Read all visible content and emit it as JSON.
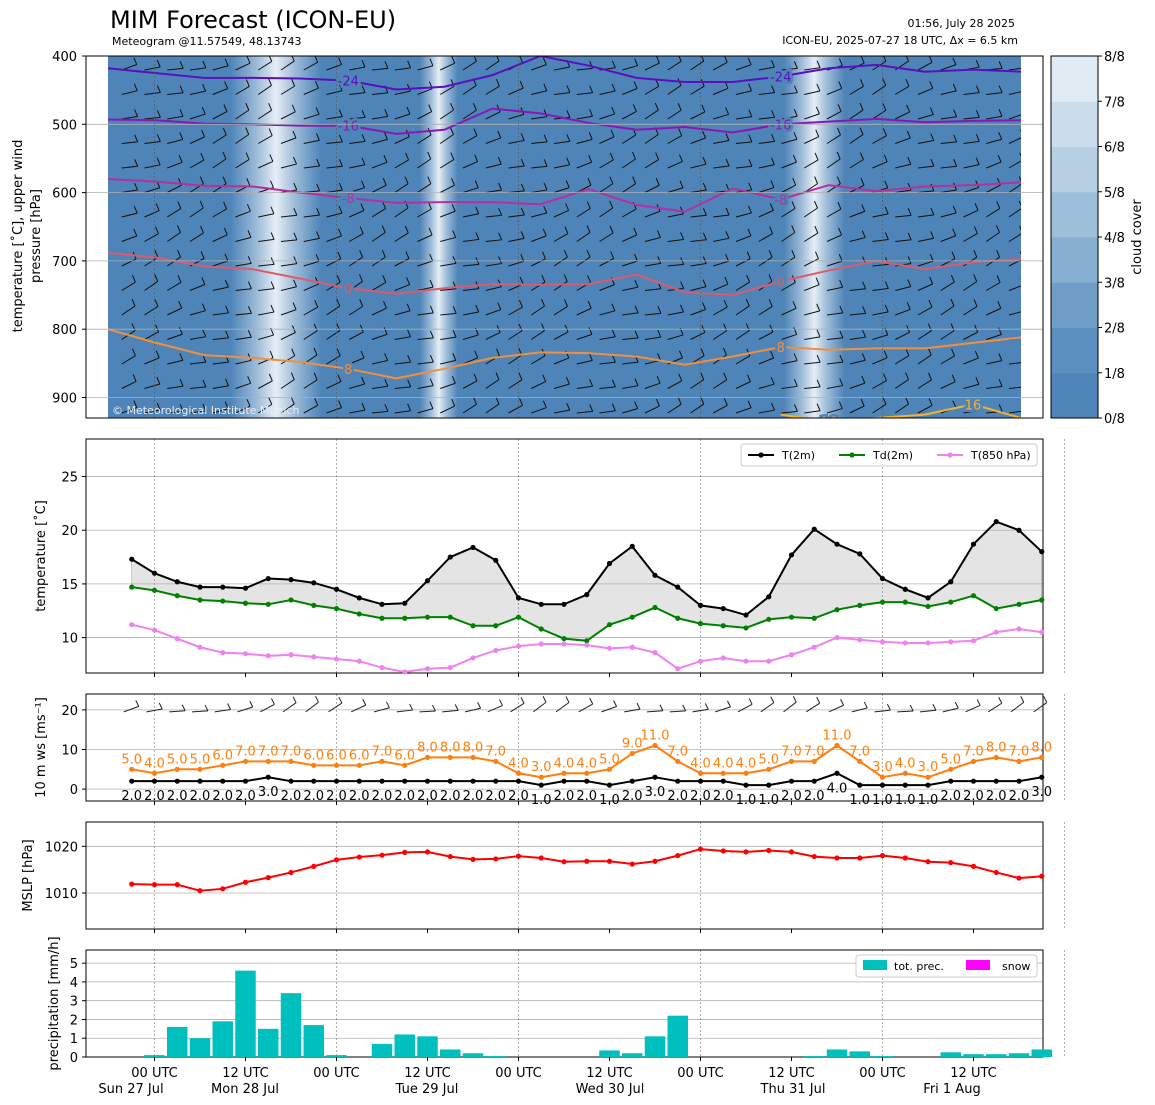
{
  "header": {
    "title": "MIM Forecast (ICON-EU)",
    "subtitle": "Meteogram @11.57549, 48.13743",
    "date": "01:56, July 28 2025",
    "model": "ICON-EU, 2025-07-27 18 UTC, Δx = 6.5 km"
  },
  "colors": {
    "t2m": "#000000",
    "td2m": "#008000",
    "t850": "#ee82ee",
    "wind10": "#ff7f0e",
    "mslp": "#ff0000",
    "precip": "#00bfbf",
    "snow": "#ff00ff"
  },
  "x_axis": {
    "tick_labels": [
      "00 UTC",
      "12 UTC",
      "00 UTC",
      "12 UTC",
      "00 UTC",
      "12 UTC",
      "00 UTC",
      "12 UTC",
      "00 UTC",
      "12 UTC"
    ],
    "day_labels": [
      "Sun 27 Jul",
      "Mon 28 Jul",
      "Tue 29 Jul",
      "Wed 30 Jul",
      "Thu 31 Jul",
      "Fri 1 Aug"
    ]
  },
  "chart_data": [
    {
      "type": "heatmap",
      "ylabel": "temperature [˚C], upper wind\npressure [hPa]",
      "yticks": [
        400,
        500,
        600,
        700,
        800,
        900
      ],
      "colorbar_label": "cloud cover",
      "colorbar_ticks": [
        "0/8",
        "1/8",
        "2/8",
        "3/8",
        "4/8",
        "5/8",
        "6/8",
        "7/8",
        "8/8"
      ],
      "watermark": "© Meteorological Institute Munich",
      "cloud_clear_bands_hours": [
        [
          10,
          22
        ],
        [
          35,
          40
        ],
        [
          83,
          91
        ],
        [
          132,
          137
        ],
        [
          161,
          163
        ],
        [
          171,
          175
        ],
        [
          181,
          183
        ],
        [
          190,
          193
        ]
      ],
      "isotherms": [
        {
          "label": "-24",
          "color": "#5b0fbf",
          "values": [
            418,
            425,
            432,
            432,
            433,
            436,
            449,
            445,
            428,
            400,
            414,
            432,
            438,
            438,
            430,
            418,
            413,
            423,
            420,
            423
          ]
        },
        {
          "label": "-16",
          "color": "#8a17b5",
          "values": [
            493,
            494,
            499,
            500,
            502,
            502,
            514,
            508,
            477,
            484,
            498,
            508,
            504,
            512,
            500,
            496,
            492,
            497,
            495,
            494
          ]
        },
        {
          "label": "-8",
          "color": "#b72f9e",
          "values": [
            580,
            584,
            590,
            591,
            600,
            608,
            615,
            614,
            614,
            617,
            595,
            618,
            628,
            594,
            610,
            589,
            598,
            591,
            589,
            585
          ]
        },
        {
          "label": "0",
          "color": "#dc5b6e",
          "values": [
            688,
            695,
            708,
            712,
            726,
            740,
            748,
            740,
            734,
            735,
            734,
            720,
            746,
            750,
            730,
            714,
            700,
            712,
            702,
            697
          ]
        },
        {
          "label": "8",
          "color": "#f0903e",
          "values": [
            800,
            820,
            838,
            842,
            848,
            858,
            872,
            858,
            842,
            834,
            835,
            840,
            852,
            840,
            826,
            830,
            828,
            828,
            820,
            812
          ]
        },
        {
          "label": "16",
          "color": "#f5b22f",
          "values": [
            null,
            null,
            null,
            null,
            null,
            null,
            null,
            null,
            null,
            null,
            null,
            null,
            null,
            null,
            925,
            935,
            null,
            925,
            910,
            930
          ]
        }
      ]
    },
    {
      "type": "line",
      "ylabel": "temperature [˚C]",
      "ylim": [
        6.7,
        28.5
      ],
      "yticks": [
        10,
        15,
        20,
        25
      ],
      "x_hours_start": -3,
      "x_hours_step": 3,
      "series": [
        {
          "name": "T(2m)",
          "values": [
            17.3,
            16.0,
            15.2,
            14.7,
            14.7,
            14.6,
            15.5,
            15.4,
            15.1,
            14.5,
            13.7,
            13.1,
            13.2,
            15.3,
            17.5,
            18.4,
            17.2,
            13.7,
            13.1,
            13.1,
            14.0,
            16.9,
            18.5,
            15.8,
            14.7,
            13.0,
            12.7,
            12.1,
            13.8,
            17.7,
            20.1,
            18.7,
            17.8,
            15.5,
            14.5,
            13.7,
            15.2,
            18.7,
            20.8,
            20.0,
            18.0
          ]
        },
        {
          "name": "Td(2m)",
          "values": [
            14.7,
            14.4,
            13.9,
            13.5,
            13.4,
            13.2,
            13.1,
            13.5,
            13.0,
            12.7,
            12.2,
            11.8,
            11.8,
            11.9,
            11.9,
            11.1,
            11.1,
            11.9,
            10.8,
            9.9,
            9.7,
            11.2,
            11.9,
            12.8,
            11.8,
            11.3,
            11.1,
            10.9,
            11.7,
            11.9,
            11.8,
            12.6,
            13.0,
            13.3,
            13.3,
            12.9,
            13.3,
            13.9,
            12.7,
            13.1,
            13.5
          ]
        },
        {
          "name": "T(850 hPa)",
          "values": [
            11.2,
            10.7,
            9.9,
            9.1,
            8.6,
            8.5,
            8.3,
            8.4,
            8.2,
            8.0,
            7.8,
            7.2,
            6.8,
            7.1,
            7.2,
            8.1,
            8.8,
            9.2,
            9.4,
            9.4,
            9.3,
            9.0,
            9.1,
            8.6,
            7.1,
            7.8,
            8.1,
            7.8,
            7.8,
            8.4,
            9.1,
            10.0,
            9.8,
            9.6,
            9.5,
            9.5,
            9.6,
            9.7,
            10.5,
            10.8,
            10.5
          ]
        }
      ]
    },
    {
      "type": "line",
      "ylabel": "10 m ws [ms⁻¹]",
      "ylim": [
        -3,
        24
      ],
      "yticks": [
        0,
        10,
        20
      ],
      "x_hours_start": -3,
      "x_hours_step": 3,
      "series": [
        {
          "name": "gust",
          "values": [
            5.0,
            4.0,
            5.0,
            5.0,
            6.0,
            7.0,
            7.0,
            7.0,
            6.0,
            6.0,
            6.0,
            7.0,
            6.0,
            8.0,
            8.0,
            8.0,
            7.0,
            4.0,
            3.0,
            4.0,
            4.0,
            5.0,
            9.0,
            11.0,
            7.0,
            4.0,
            4.0,
            4.0,
            5.0,
            7.0,
            7.0,
            11.0,
            7.0,
            3.0,
            4.0,
            3.0,
            5.0,
            7.0,
            8.0,
            7.0,
            8.0
          ]
        },
        {
          "name": "mean",
          "values": [
            2.0,
            2.0,
            2.0,
            2.0,
            2.0,
            2.0,
            3.0,
            2.0,
            2.0,
            2.0,
            2.0,
            2.0,
            2.0,
            2.0,
            2.0,
            2.0,
            2.0,
            2.0,
            1.0,
            2.0,
            2.0,
            1.0,
            2.0,
            3.0,
            2.0,
            2.0,
            2.0,
            1.0,
            1.0,
            2.0,
            2.0,
            4.0,
            1.0,
            1.0,
            1.0,
            1.0,
            2.0,
            2.0,
            2.0,
            2.0,
            3.0
          ]
        }
      ],
      "mean_labels": [
        "2.0",
        "2.0",
        "2.0",
        "2.0",
        "2.0",
        "2.0",
        "3.0",
        "2.0",
        "2.0",
        "2.0",
        "2.0",
        "2.0",
        "2.0",
        "2.0",
        "2.0",
        "2.0",
        "2.0",
        "2.0",
        "1.0",
        "2.0",
        "2.0",
        "1.0",
        "2.0",
        "3.0",
        "2.0",
        "2.0",
        "2.0",
        "1.0",
        "1.0",
        "2.0",
        "2.0",
        "4.0",
        "1.0",
        "1.0",
        "1.0",
        "1.0",
        "2.0",
        "2.0",
        "2.0",
        "2.0",
        "3.0"
      ],
      "gust_labels": [
        "5.0",
        "4.0",
        "5.0",
        "5.0",
        "6.0",
        "7.0",
        "7.0",
        "7.0",
        "6.0",
        "6.0",
        "6.0",
        "7.0",
        "6.0",
        "8.0",
        "8.0",
        "8.0",
        "7.0",
        "4.0",
        "3.0",
        "4.0",
        "4.0",
        "5.0",
        "9.0",
        "11.0",
        "7.0",
        "4.0",
        "4.0",
        "4.0",
        "5.0",
        "7.0",
        "7.0",
        "11.0",
        "7.0",
        "3.0",
        "4.0",
        "3.0",
        "5.0",
        "7.0",
        "8.0",
        "7.0",
        "8.0"
      ]
    },
    {
      "type": "line",
      "ylabel": "MSLP [hPa]",
      "ylim": [
        1002.3,
        1025.2
      ],
      "yticks": [
        1010,
        1020
      ],
      "x_hours_start": -3,
      "x_hours_step": 3,
      "series": [
        {
          "name": "MSLP",
          "values": [
            1011.9,
            1011.8,
            1011.8,
            1010.5,
            1010.9,
            1012.3,
            1013.3,
            1014.4,
            1015.7,
            1017.1,
            1017.7,
            1018.1,
            1018.7,
            1018.8,
            1017.8,
            1017.2,
            1017.3,
            1017.9,
            1017.5,
            1016.7,
            1016.8,
            1016.8,
            1016.2,
            1016.8,
            1018.0,
            1019.4,
            1019.0,
            1018.8,
            1019.1,
            1018.8,
            1017.8,
            1017.5,
            1017.5,
            1018.0,
            1017.5,
            1016.7,
            1016.5,
            1015.7,
            1014.4,
            1013.2,
            1013.6
          ]
        }
      ]
    },
    {
      "type": "bar",
      "ylabel": "precipitation [mm/h]",
      "ylim": [
        0,
        5.7
      ],
      "yticks": [
        0,
        1,
        2,
        3,
        4,
        5
      ],
      "x_hours_start": -3,
      "x_hours_step": 3,
      "series": [
        {
          "name": "tot. prec.",
          "values": [
            0,
            0.1,
            1.6,
            1.0,
            1.9,
            4.6,
            1.5,
            3.4,
            1.7,
            0.1,
            0,
            0.7,
            1.2,
            1.1,
            0.4,
            0.2,
            0.05,
            0,
            0,
            0,
            0,
            0.35,
            0.2,
            1.1,
            2.2,
            0,
            0,
            0,
            0,
            0,
            0.05,
            0.4,
            0.3,
            0.05,
            0,
            0,
            0.25,
            0.15,
            0.15,
            0.2,
            0.4
          ]
        },
        {
          "name": "snow",
          "values": [
            0,
            0,
            0,
            0,
            0,
            0,
            0,
            0,
            0,
            0,
            0,
            0,
            0,
            0,
            0,
            0,
            0,
            0,
            0,
            0,
            0,
            0,
            0,
            0,
            0,
            0,
            0,
            0,
            0,
            0,
            0,
            0,
            0,
            0,
            0,
            0,
            0,
            0,
            0,
            0,
            0
          ]
        }
      ]
    }
  ]
}
